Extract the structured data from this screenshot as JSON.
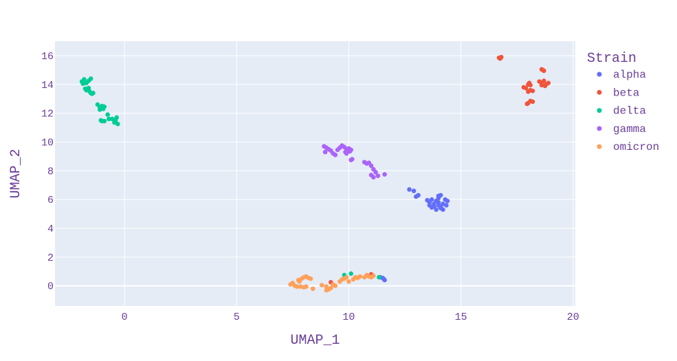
{
  "chart_data": {
    "type": "scatter",
    "title": "",
    "xlabel": "UMAP_1",
    "ylabel": "UMAP_2",
    "xlim": [
      -3.1,
      20.1
    ],
    "ylim": [
      -1.4,
      17
    ],
    "xticks": [
      0,
      5,
      10,
      15,
      20
    ],
    "yticks": [
      0,
      2,
      4,
      6,
      8,
      10,
      12,
      14,
      16
    ],
    "grid": true,
    "legend": {
      "title": "Strain",
      "placement": "right"
    },
    "text_color": "#6a3d9a",
    "plot_bg": "#e5ecf6",
    "series": [
      {
        "name": "alpha",
        "color": "#636efa",
        "points": [
          [
            12.7,
            6.7
          ],
          [
            12.9,
            6.6
          ],
          [
            13.1,
            6.3
          ],
          [
            13.0,
            6.2
          ],
          [
            13.5,
            5.95
          ],
          [
            13.6,
            5.8
          ],
          [
            13.7,
            6.0
          ],
          [
            13.8,
            5.7
          ],
          [
            13.9,
            5.9
          ],
          [
            14.0,
            6.1
          ],
          [
            14.1,
            6.3
          ],
          [
            14.0,
            6.25
          ],
          [
            13.8,
            5.5
          ],
          [
            13.9,
            5.3
          ],
          [
            14.0,
            5.6
          ],
          [
            14.1,
            5.4
          ],
          [
            14.2,
            5.7
          ],
          [
            14.3,
            6.0
          ],
          [
            14.4,
            5.9
          ],
          [
            14.35,
            5.6
          ],
          [
            14.2,
            5.3
          ],
          [
            14.1,
            5.5
          ],
          [
            13.6,
            5.6
          ],
          [
            13.7,
            5.45
          ],
          [
            14.0,
            5.8
          ],
          [
            11.5,
            0.55
          ],
          [
            11.6,
            0.4
          ],
          [
            11.4,
            0.6
          ],
          [
            11.55,
            0.5
          ]
        ]
      },
      {
        "name": "beta",
        "color": "#ef553b",
        "points": [
          [
            16.7,
            15.85
          ],
          [
            16.75,
            15.8
          ],
          [
            16.8,
            15.9
          ],
          [
            18.6,
            15.05
          ],
          [
            18.7,
            14.95
          ],
          [
            18.65,
            15.0
          ],
          [
            18.5,
            14.2
          ],
          [
            18.6,
            14.1
          ],
          [
            18.7,
            14.25
          ],
          [
            18.8,
            14.0
          ],
          [
            18.75,
            13.9
          ],
          [
            18.6,
            13.95
          ],
          [
            18.9,
            14.1
          ],
          [
            17.8,
            13.8
          ],
          [
            17.9,
            13.75
          ],
          [
            18.0,
            14.0
          ],
          [
            18.05,
            14.1
          ],
          [
            18.1,
            13.95
          ],
          [
            18.0,
            13.5
          ],
          [
            18.1,
            13.6
          ],
          [
            18.2,
            13.55
          ],
          [
            18.0,
            12.7
          ],
          [
            18.1,
            12.85
          ],
          [
            18.2,
            12.8
          ],
          [
            17.95,
            12.65
          ],
          [
            9.2,
            0.25
          ],
          [
            11.0,
            0.8
          ]
        ]
      },
      {
        "name": "delta",
        "color": "#00cc96",
        "points": [
          [
            -1.9,
            14.2
          ],
          [
            -1.8,
            14.35
          ],
          [
            -1.7,
            14.1
          ],
          [
            -1.6,
            14.25
          ],
          [
            -1.5,
            14.4
          ],
          [
            -1.85,
            14.05
          ],
          [
            -1.75,
            13.7
          ],
          [
            -1.7,
            13.6
          ],
          [
            -1.6,
            13.75
          ],
          [
            -1.55,
            13.5
          ],
          [
            -1.5,
            13.4
          ],
          [
            -1.45,
            13.35
          ],
          [
            -1.4,
            13.4
          ],
          [
            -1.2,
            12.6
          ],
          [
            -1.1,
            12.4
          ],
          [
            -1.0,
            12.5
          ],
          [
            -0.95,
            12.3
          ],
          [
            -0.9,
            12.45
          ],
          [
            -1.1,
            12.25
          ],
          [
            -0.75,
            11.9
          ],
          [
            -0.7,
            11.6
          ],
          [
            -0.55,
            11.6
          ],
          [
            -0.4,
            11.5
          ],
          [
            -0.35,
            11.7
          ],
          [
            -0.45,
            11.35
          ],
          [
            -0.3,
            11.25
          ],
          [
            -1.05,
            11.5
          ],
          [
            -1.0,
            11.45
          ],
          [
            -0.9,
            11.45
          ],
          [
            9.8,
            0.75
          ],
          [
            10.1,
            0.85
          ],
          [
            11.35,
            0.6
          ]
        ]
      },
      {
        "name": "gamma",
        "color": "#ab63fa",
        "points": [
          [
            8.9,
            9.7
          ],
          [
            9.0,
            9.6
          ],
          [
            9.1,
            9.5
          ],
          [
            8.95,
            9.3
          ],
          [
            9.2,
            9.4
          ],
          [
            9.3,
            9.2
          ],
          [
            9.4,
            9.1
          ],
          [
            9.5,
            9.45
          ],
          [
            9.6,
            9.6
          ],
          [
            9.7,
            9.75
          ],
          [
            9.8,
            9.65
          ],
          [
            9.85,
            9.3
          ],
          [
            9.9,
            9.5
          ],
          [
            10.0,
            9.55
          ],
          [
            10.05,
            9.35
          ],
          [
            10.1,
            9.45
          ],
          [
            9.9,
            9.2
          ],
          [
            10.1,
            8.75
          ],
          [
            10.15,
            8.8
          ],
          [
            10.7,
            8.6
          ],
          [
            10.8,
            8.5
          ],
          [
            10.9,
            8.55
          ],
          [
            11.0,
            8.35
          ],
          [
            11.1,
            8.1
          ],
          [
            11.2,
            7.9
          ],
          [
            11.3,
            7.65
          ],
          [
            11.0,
            7.7
          ],
          [
            11.1,
            7.55
          ],
          [
            11.6,
            7.75
          ]
        ]
      },
      {
        "name": "omicron",
        "color": "#ffa15a",
        "points": [
          [
            7.4,
            0.1
          ],
          [
            7.5,
            0.2
          ],
          [
            7.6,
            0.0
          ],
          [
            7.7,
            -0.05
          ],
          [
            7.8,
            0.3
          ],
          [
            7.9,
            0.5
          ],
          [
            7.75,
            0.4
          ],
          [
            8.0,
            0.6
          ],
          [
            8.1,
            0.65
          ],
          [
            8.2,
            0.55
          ],
          [
            8.3,
            0.5
          ],
          [
            8.0,
            -0.1
          ],
          [
            7.85,
            -0.05
          ],
          [
            8.1,
            -0.05
          ],
          [
            8.4,
            -0.2
          ],
          [
            8.8,
            0.05
          ],
          [
            9.0,
            -0.3
          ],
          [
            9.1,
            -0.25
          ],
          [
            9.2,
            -0.15
          ],
          [
            9.0,
            -0.05
          ],
          [
            9.3,
            0.1
          ],
          [
            9.4,
            0.0
          ],
          [
            9.6,
            0.3
          ],
          [
            9.7,
            0.45
          ],
          [
            9.8,
            0.5
          ],
          [
            9.9,
            0.6
          ],
          [
            10.0,
            0.3
          ],
          [
            10.2,
            0.45
          ],
          [
            10.3,
            0.6
          ],
          [
            10.4,
            0.55
          ],
          [
            10.5,
            0.65
          ],
          [
            10.7,
            0.6
          ],
          [
            10.8,
            0.75
          ],
          [
            10.9,
            0.65
          ],
          [
            11.0,
            0.6
          ],
          [
            11.1,
            0.7
          ]
        ]
      }
    ]
  }
}
